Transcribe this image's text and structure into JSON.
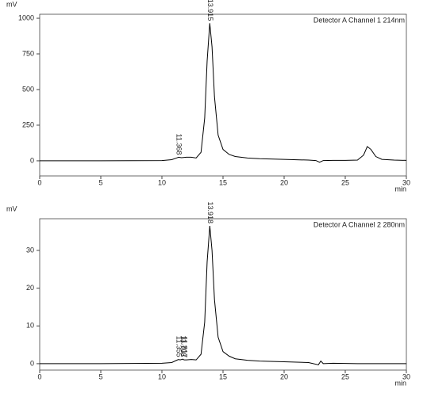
{
  "chart_data": [
    {
      "type": "line",
      "y_label": "mV",
      "x_label": "min",
      "annotation": "Detector A Channel 1 214nm",
      "color": "#000000",
      "x": [
        0,
        5,
        10,
        10.8,
        11.2,
        11.368,
        11.6,
        12,
        12.4,
        12.8,
        13.2,
        13.5,
        13.7,
        13.915,
        14.1,
        14.3,
        14.6,
        15,
        15.5,
        16,
        17,
        18,
        20,
        22,
        22.6,
        22.9,
        23.2,
        24,
        25,
        26,
        26.5,
        26.8,
        27.1,
        27.5,
        28,
        29,
        30
      ],
      "values": [
        0,
        0,
        2,
        8,
        20,
        25,
        22,
        25,
        25,
        20,
        60,
        300,
        700,
        965,
        800,
        450,
        180,
        80,
        45,
        30,
        20,
        15,
        10,
        5,
        2,
        -10,
        2,
        3,
        3,
        5,
        40,
        100,
        80,
        30,
        10,
        5,
        3
      ],
      "peaks": [
        11.368,
        13.915
      ],
      "xlim": [
        0,
        30
      ],
      "xticks": [
        0,
        5,
        10,
        15,
        20,
        25,
        30
      ],
      "ylim": [
        -106,
        1028
      ],
      "yticks": [
        0,
        250,
        500,
        750,
        1000
      ]
    },
    {
      "type": "line",
      "y_label": "mV",
      "x_label": "min",
      "annotation": "Detector A Channel 2 280nm",
      "color": "#000000",
      "x": [
        0,
        5,
        10,
        10.8,
        11.2,
        11.355,
        11.5,
        11.708,
        11.817,
        12,
        12.4,
        12.8,
        13.2,
        13.5,
        13.7,
        13.918,
        14.1,
        14.3,
        14.6,
        15,
        15.5,
        16,
        17,
        18,
        20,
        22,
        22.8,
        23,
        23.2,
        24,
        26,
        28,
        30
      ],
      "values": [
        0,
        0,
        0.1,
        0.3,
        0.9,
        1.1,
        1,
        1.2,
        1,
        1,
        1.1,
        1,
        2.5,
        11,
        27,
        36.5,
        30,
        17,
        7,
        3.2,
        2,
        1.3,
        0.9,
        0.7,
        0.5,
        0.3,
        -0.3,
        0.7,
        0,
        0.1,
        0,
        0,
        0
      ],
      "peaks": [
        11.355,
        11.708,
        11.817,
        13.918
      ],
      "xlim": [
        0,
        30
      ],
      "xticks": [
        0,
        5,
        10,
        15,
        20,
        25,
        30
      ],
      "ylim": [
        -1.7,
        38.4
      ],
      "yticks": [
        0,
        10,
        20,
        30
      ]
    }
  ]
}
